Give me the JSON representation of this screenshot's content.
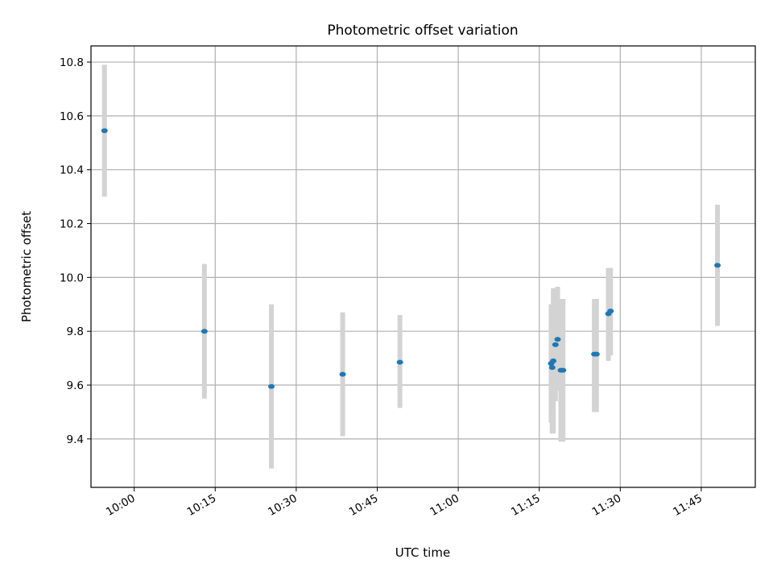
{
  "chart_data": {
    "type": "scatter",
    "title": "Photometric offset variation",
    "xlabel": "UTC time",
    "ylabel": "Photometric offset",
    "grid": true,
    "legend": "none",
    "x_axis": "time",
    "xlim": [
      "09:52",
      "11:55"
    ],
    "ylim": [
      9.22,
      10.86
    ],
    "x_ticks": [
      "10:00",
      "10:15",
      "10:30",
      "10:45",
      "11:00",
      "11:15",
      "11:30",
      "11:45"
    ],
    "y_ticks": [
      "9.4",
      "9.6",
      "9.8",
      "10.0",
      "10.2",
      "10.4",
      "10.6",
      "10.8"
    ],
    "point_color": "#1f77b4",
    "errorbar_color": "#d3d3d3",
    "points": [
      {
        "x": "09:54:30",
        "y": 10.545,
        "lo": 10.3,
        "hi": 10.79
      },
      {
        "x": "10:13:00",
        "y": 9.8,
        "lo": 9.55,
        "hi": 10.05
      },
      {
        "x": "10:25:24",
        "y": 9.595,
        "lo": 9.29,
        "hi": 9.9
      },
      {
        "x": "10:38:36",
        "y": 9.64,
        "lo": 9.41,
        "hi": 9.87
      },
      {
        "x": "10:49:12",
        "y": 9.685,
        "lo": 9.515,
        "hi": 9.86
      },
      {
        "x": "11:17:12",
        "y": 9.68,
        "lo": 9.46,
        "hi": 9.9
      },
      {
        "x": "11:17:24",
        "y": 9.665,
        "lo": 9.42,
        "hi": 9.88
      },
      {
        "x": "11:17:36",
        "y": 9.69,
        "lo": 9.42,
        "hi": 9.96
      },
      {
        "x": "11:18:00",
        "y": 9.75,
        "lo": 9.54,
        "hi": 9.96
      },
      {
        "x": "11:18:24",
        "y": 9.77,
        "lo": 9.58,
        "hi": 9.965
      },
      {
        "x": "11:19:00",
        "y": 9.655,
        "lo": 9.39,
        "hi": 9.92
      },
      {
        "x": "11:19:24",
        "y": 9.655,
        "lo": 9.39,
        "hi": 9.92
      },
      {
        "x": "11:25:12",
        "y": 9.715,
        "lo": 9.5,
        "hi": 9.92
      },
      {
        "x": "11:25:36",
        "y": 9.715,
        "lo": 9.5,
        "hi": 9.92
      },
      {
        "x": "11:27:48",
        "y": 9.865,
        "lo": 9.69,
        "hi": 10.035
      },
      {
        "x": "11:28:12",
        "y": 9.875,
        "lo": 9.71,
        "hi": 10.035
      },
      {
        "x": "11:48:00",
        "y": 10.045,
        "lo": 9.82,
        "hi": 10.27
      }
    ]
  }
}
